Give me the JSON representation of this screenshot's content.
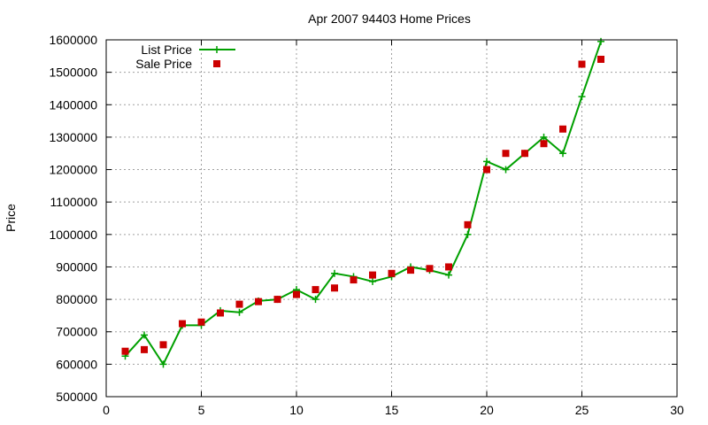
{
  "chart_data": {
    "type": "line",
    "title": "Apr 2007 94403 Home Prices",
    "xlabel": "",
    "ylabel": "Price",
    "xlim": [
      0,
      30
    ],
    "ylim": [
      500000,
      1600000
    ],
    "xticks": [
      0,
      5,
      10,
      15,
      20,
      25,
      30
    ],
    "yticks": [
      500000,
      600000,
      700000,
      800000,
      900000,
      1000000,
      1100000,
      1200000,
      1300000,
      1400000,
      1500000,
      1600000
    ],
    "grid": true,
    "legend_position": "top-left",
    "series": [
      {
        "name": "List Price",
        "style": "line+cross",
        "color": "#00a000",
        "x": [
          1,
          2,
          3,
          4,
          5,
          6,
          7,
          8,
          9,
          10,
          11,
          12,
          13,
          14,
          15,
          16,
          17,
          18,
          19,
          20,
          21,
          22,
          23,
          24,
          25,
          26
        ],
        "values": [
          625000,
          690000,
          600000,
          720000,
          720000,
          765000,
          760000,
          795000,
          800000,
          830000,
          800000,
          880000,
          870000,
          855000,
          870000,
          900000,
          890000,
          875000,
          1000000,
          1225000,
          1200000,
          1250000,
          1300000,
          1250000,
          1425000,
          1595000
        ]
      },
      {
        "name": "Sale Price",
        "style": "square",
        "color": "#cc0000",
        "x": [
          1,
          2,
          3,
          4,
          5,
          6,
          7,
          8,
          9,
          10,
          11,
          12,
          13,
          14,
          15,
          16,
          17,
          18,
          19,
          20,
          21,
          22,
          23,
          24,
          25,
          26
        ],
        "values": [
          640000,
          645000,
          660000,
          725000,
          730000,
          758000,
          785000,
          793000,
          800000,
          815000,
          830000,
          835000,
          860000,
          875000,
          880000,
          890000,
          895000,
          900000,
          1030000,
          1200000,
          1250000,
          1250000,
          1280000,
          1325000,
          1525000,
          1540000
        ]
      }
    ]
  }
}
